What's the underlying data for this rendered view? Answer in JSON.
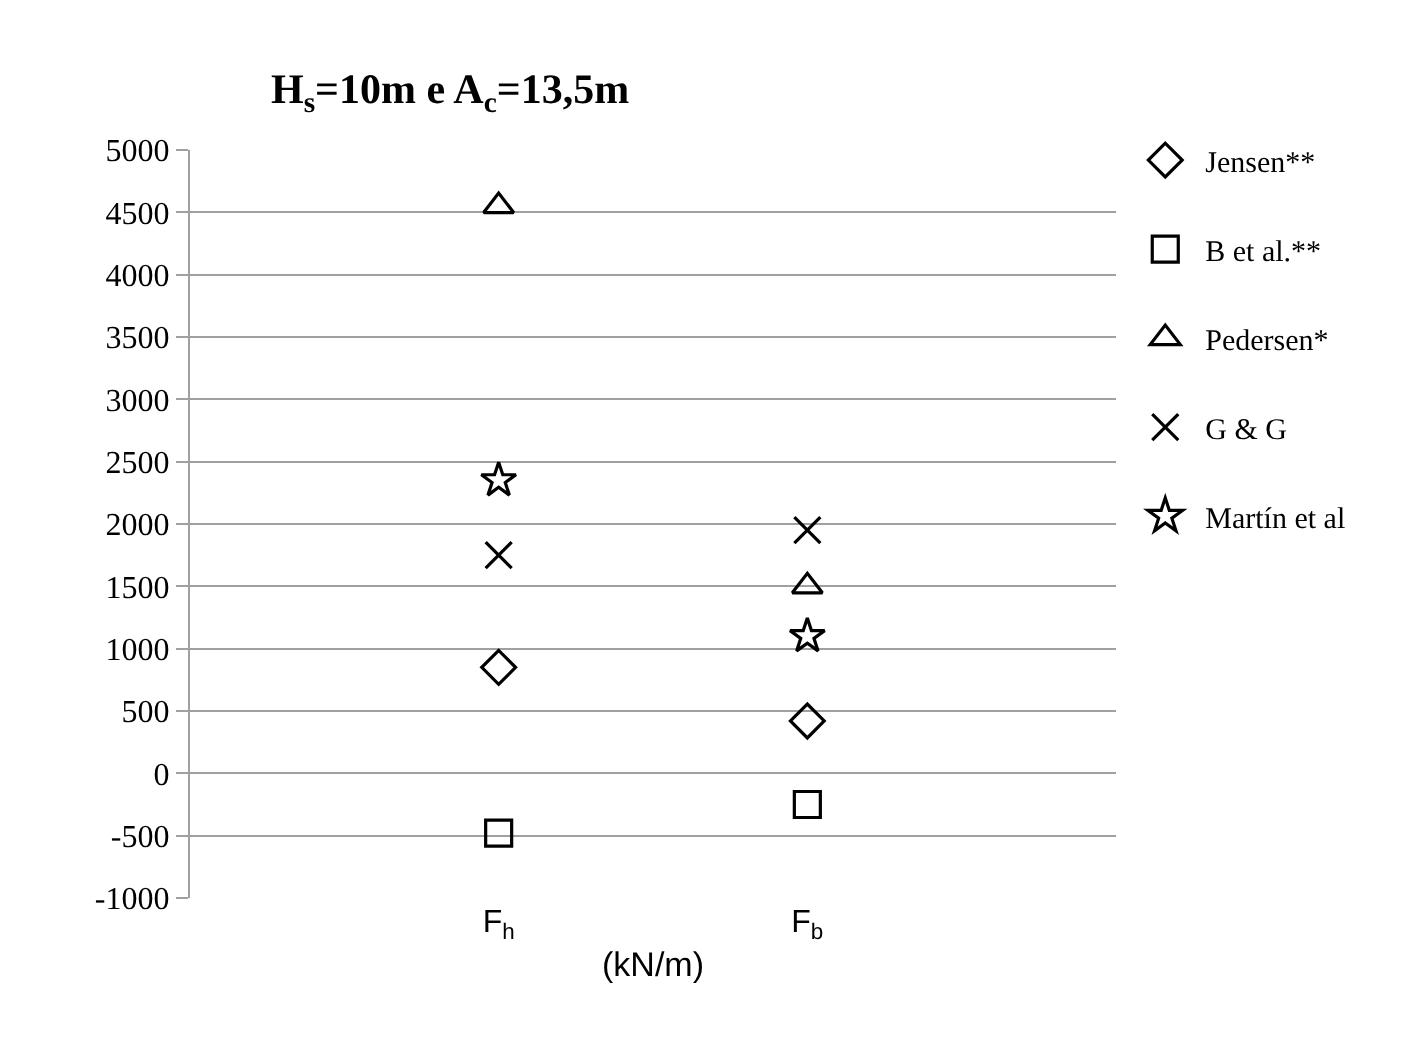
{
  "chart_data": {
    "type": "scatter",
    "title": "H$_{s}$=10m e A$_{c}$=13,5m",
    "xlabel": "(kN/m)",
    "categories": [
      "F$_{h}$",
      "F$_{b}$"
    ],
    "series": [
      {
        "name": "Jensen**",
        "color": "#000000",
        "marker": "diamond",
        "values": [
          850,
          420
        ]
      },
      {
        "name": "B et al.**",
        "color": "#000000",
        "marker": "square",
        "values": [
          -480,
          -250
        ]
      },
      {
        "name": "Pedersen*",
        "color": "#000000",
        "marker": "triangle",
        "values": [
          4550,
          1500
        ]
      },
      {
        "name": "G & G",
        "color": "#000000",
        "marker": "cross",
        "values": [
          1750,
          1950
        ]
      },
      {
        "name": "Martín et al",
        "color": "#000000",
        "marker": "star",
        "values": [
          2350,
          1100
        ]
      }
    ],
    "ylim": [
      -1000,
      5000
    ],
    "yticks": [
      -1000,
      -500,
      0,
      500,
      1000,
      1500,
      2000,
      2500,
      3000,
      3500,
      4000,
      4500,
      5000
    ],
    "grid": "y",
    "legend": "right"
  }
}
